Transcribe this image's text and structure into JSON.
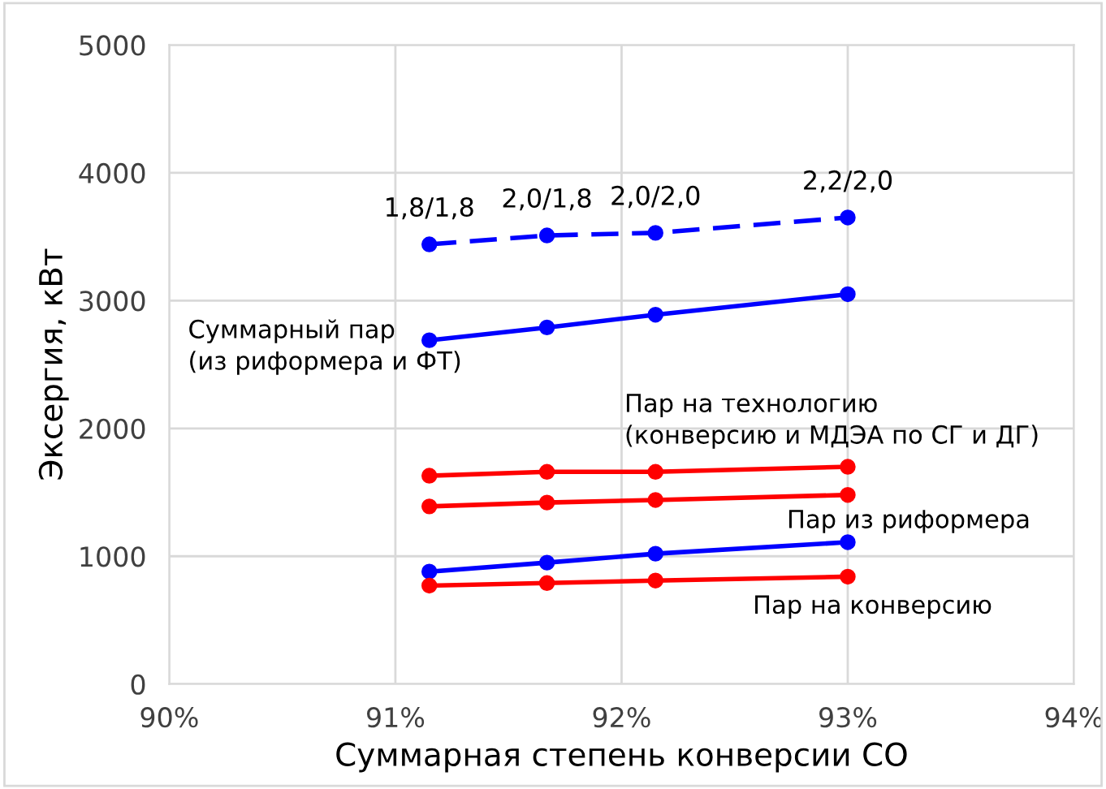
{
  "chart_data": {
    "type": "line",
    "xlabel": "Суммарная степень конверсии CO",
    "ylabel": "Эксергия, кВт",
    "xlim": [
      90,
      94
    ],
    "xticks": [
      {
        "value": 90,
        "label": "90%"
      },
      {
        "value": 91,
        "label": "91%"
      },
      {
        "value": 92,
        "label": "92%"
      },
      {
        "value": 93,
        "label": "93%"
      },
      {
        "value": 94,
        "label": "94%"
      }
    ],
    "ylim": [
      0,
      5000
    ],
    "yticks": [
      0,
      1000,
      2000,
      3000,
      4000,
      5000
    ],
    "grid": true,
    "legend": false,
    "marker": "circle",
    "x": [
      91.15,
      91.67,
      92.15,
      93.0
    ],
    "series": [
      {
        "color": "#0000ff",
        "line_style": "dashed",
        "values": [
          3440,
          3510,
          3530,
          3650
        ],
        "value_labels": [
          "1,8/1,8",
          "2,0/1,8",
          "2,0/2,0",
          "2,2/2,0"
        ]
      },
      {
        "name": "Суммарный пар\n(из риформера и ФТ)",
        "color": "#0000ff",
        "line_style": "solid",
        "values": [
          2690,
          2790,
          2890,
          3050
        ]
      },
      {
        "name": "Пар на технологию\n(конверсию и МДЭА по СГ и ДГ)",
        "color": "#ff0000",
        "line_style": "solid",
        "values": [
          1630,
          1660,
          1660,
          1700
        ]
      },
      {
        "color": "#ff0000",
        "line_style": "solid",
        "values": [
          1390,
          1420,
          1440,
          1480
        ]
      },
      {
        "name": "Пар из риформера",
        "color": "#0000ff",
        "line_style": "solid",
        "values": [
          880,
          950,
          1020,
          1110
        ]
      },
      {
        "name": "Пар на конверсию",
        "color": "#ff0000",
        "line_style": "solid",
        "values": [
          770,
          790,
          810,
          840
        ]
      }
    ]
  }
}
